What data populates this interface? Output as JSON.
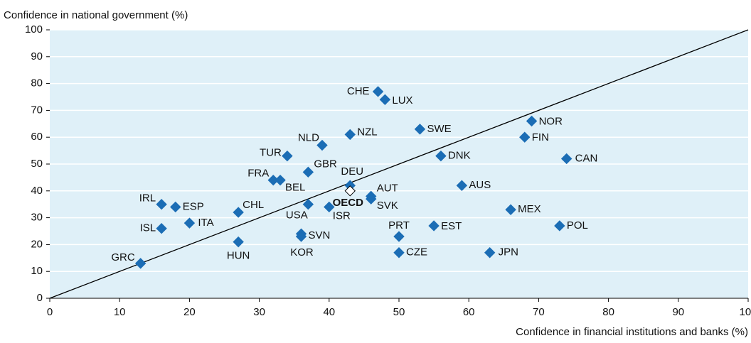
{
  "chart_data": {
    "type": "scatter",
    "xlabel": "Confidence in financial institutions and banks (%)",
    "ylabel": "Confidence in national government (%)",
    "xlim": [
      0,
      100
    ],
    "ylim": [
      0,
      100
    ],
    "xticks": [
      0,
      10,
      20,
      30,
      40,
      50,
      60,
      70,
      80,
      90,
      100
    ],
    "yticks": [
      0,
      10,
      20,
      30,
      40,
      50,
      60,
      70,
      80,
      90,
      100
    ],
    "grid": true,
    "series": [
      {
        "color": "#1b6db5",
        "labels": [
          "CHE",
          "LUX",
          "NZL",
          "NLD",
          "SWE",
          "NOR",
          "FIN",
          "CAN",
          "TUR",
          "DNK",
          "GBR",
          "FRA",
          "BEL",
          "DEU",
          "AUS",
          "AUT",
          "SVK",
          "IRL",
          "ESP",
          "CHL",
          "USA",
          "ISR",
          "MEX",
          "ISL",
          "ITA",
          "EST",
          "POL",
          "SVN",
          "KOR",
          "PRT",
          "HUN",
          "CZE",
          "JPN",
          "GRC"
        ],
        "x": [
          47,
          48,
          43,
          39,
          53,
          69,
          68,
          74,
          34,
          56,
          37,
          32,
          33,
          43,
          59,
          46,
          46,
          16,
          18,
          27,
          37,
          40,
          66,
          16,
          20,
          55,
          73,
          36,
          36,
          50,
          27,
          50,
          63,
          13
        ],
        "y": [
          77,
          74,
          61,
          57,
          63,
          66,
          60,
          52,
          53,
          53,
          47,
          44,
          44,
          42,
          42,
          38,
          37,
          35,
          34,
          32,
          35,
          34,
          33,
          26,
          28,
          27,
          27,
          24,
          23,
          23,
          21,
          17,
          17,
          13
        ]
      },
      {
        "color": "#ffffff",
        "bold": true,
        "labels": [
          "OECD"
        ],
        "x": [
          43
        ],
        "y": [
          40
        ]
      }
    ]
  }
}
